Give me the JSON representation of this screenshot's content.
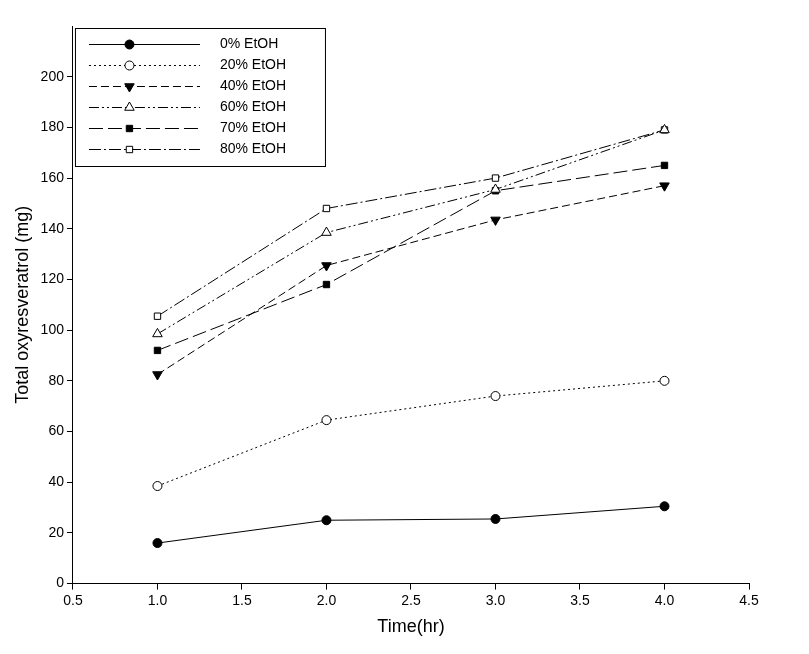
{
  "chart_data": {
    "type": "line",
    "x_label": "Time(hr)",
    "y_label": "Total oxyresveratrol (mg)",
    "x": [
      1,
      2,
      3,
      4
    ],
    "series": [
      {
        "name": "0% EtOH",
        "color": "#000000",
        "marker": "filled_circle",
        "line_style": "solid",
        "values": [
          16,
          25,
          25.5,
          30.5
        ]
      },
      {
        "name": "20% EtOH",
        "color": "#000000",
        "marker": "open_circle",
        "line_style": "dotted",
        "values": [
          38.5,
          64.5,
          74,
          80
        ]
      },
      {
        "name": "40% EtOH",
        "color": "#000000",
        "marker": "filled_triangle_down",
        "line_style": "dashed",
        "values": [
          82.5,
          125.5,
          143.5,
          157
        ]
      },
      {
        "name": "60% EtOH",
        "color": "#000000",
        "marker": "open_triangle_up",
        "line_style": "dash_dot_dot",
        "values": [
          98.5,
          138.5,
          155.5,
          179
        ]
      },
      {
        "name": "70% EtOH",
        "color": "#000000",
        "marker": "filled_square",
        "line_style": "long_dash",
        "values": [
          92,
          118,
          155,
          165
        ]
      },
      {
        "name": "80% EtOH",
        "color": "#000000",
        "marker": "open_square",
        "line_style": "dash_dot",
        "values": [
          105.5,
          148,
          160,
          179
        ]
      }
    ],
    "xlim": [
      0.5,
      4.5
    ],
    "xticks": [
      0.5,
      {
        "value": 1,
        "label": "1.0"
      },
      1.5,
      {
        "value": 2,
        "label": "2.0"
      },
      2.5,
      {
        "value": 3,
        "label": "3.0"
      },
      3.5,
      {
        "value": 4,
        "label": "4.0"
      },
      4.5
    ],
    "ylim": [
      0,
      220
    ],
    "yticks": [
      0,
      20,
      40,
      60,
      80,
      100,
      120,
      140,
      160,
      180,
      200
    ],
    "grid": false,
    "legend": "upper left"
  }
}
